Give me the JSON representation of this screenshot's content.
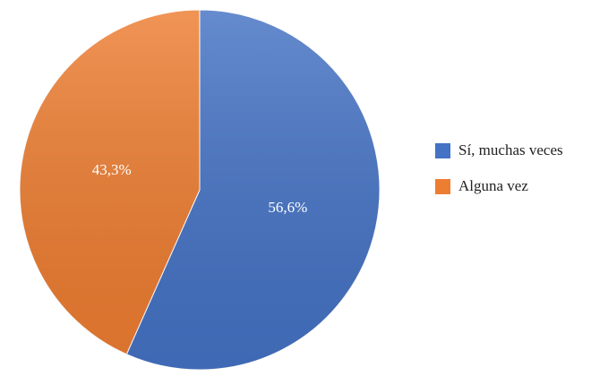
{
  "chart_data": {
    "type": "pie",
    "categories": [
      "Sí, muchas veces",
      "Alguna vez"
    ],
    "values": [
      56.6,
      43.3
    ],
    "value_labels": [
      "56,6%",
      "43,3%"
    ],
    "colors": [
      "#4472c4",
      "#ed7d31"
    ],
    "legend": "right"
  }
}
